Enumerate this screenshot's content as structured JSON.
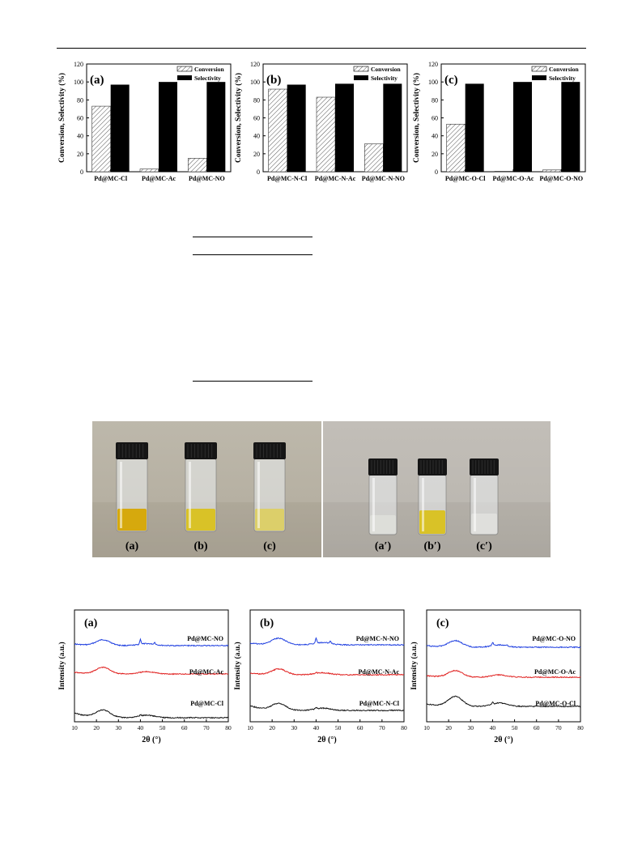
{
  "bar_figures": [
    {
      "panel": "(a)",
      "ylabel": "Conversion, Selectivity (%)",
      "legend": [
        "Conversion",
        "Selectivity"
      ],
      "categories": [
        "Pd@MC-Cl",
        "Pd@MC-Ac",
        "Pd@MC-NO"
      ],
      "conversion": [
        73,
        3,
        15
      ],
      "selectivity": [
        97,
        100,
        100
      ]
    },
    {
      "panel": "(b)",
      "ylabel": "Conversion, Selectivity (%)",
      "legend": [
        "Conversion",
        "Selectivity"
      ],
      "categories": [
        "Pd@MC-N-Cl",
        "Pd@MC-N-Ac",
        "Pd@MC-N-NO"
      ],
      "conversion": [
        92,
        83,
        31
      ],
      "selectivity": [
        97,
        98,
        98
      ]
    },
    {
      "panel": "(c)",
      "ylabel": "Conversion, Selectivity (%)",
      "legend": [
        "Conversion",
        "Selectivity"
      ],
      "categories": [
        "Pd@MC-O-Cl",
        "Pd@MC-O-Ac",
        "Pd@MC-O-NO"
      ],
      "conversion": [
        53,
        0.5,
        2
      ],
      "selectivity": [
        98,
        100,
        100
      ]
    }
  ],
  "bar_axis": {
    "ymin": 0,
    "ymax": 120,
    "yticks": [
      0,
      20,
      40,
      60,
      80,
      100,
      120
    ]
  },
  "photo": {
    "left_labels": [
      "(a)",
      "(b)",
      "(c)"
    ],
    "right_labels": [
      "(a′)",
      "(b′)",
      "(c′)"
    ],
    "colors": {
      "background_left": "#b8b3a6",
      "background_right": "#bdb9b3",
      "cap": "#151515",
      "liquid_a": "#d6a90d",
      "liquid_b": "#d9c227",
      "liquid_c": "#dccf6a"
    }
  },
  "xrd_figures": [
    {
      "panel": "(a)",
      "ylabel": "Intensity (a.u.)",
      "xlabel": "2θ (°)",
      "labels": [
        "Pd@MC-NO",
        "Pd@MC-Ac",
        "Pd@MC-Cl"
      ]
    },
    {
      "panel": "(b)",
      "ylabel": "Intensity (a.u.)",
      "xlabel": "2θ (°)",
      "labels": [
        "Pd@MC-N-NO",
        "Pd@MC-N-Ac",
        "Pd@MC-N-Cl"
      ]
    },
    {
      "panel": "(c)",
      "ylabel": "Intensity (a.u.)",
      "xlabel": "2θ (°)",
      "labels": [
        "Pd@MC-O-NO",
        "Pd@MC-O-Ac",
        "Pd@MC-O-Cl"
      ]
    }
  ],
  "xrd_axis": {
    "xmin": 10,
    "xmax": 80,
    "xticks": [
      10,
      20,
      30,
      40,
      50,
      60,
      70,
      80
    ]
  },
  "colors": {
    "blue": "#1f3fe0",
    "red": "#e0201f",
    "black": "#111111"
  },
  "chart_data": [
    {
      "type": "bar",
      "title": "(a)",
      "ylabel": "Conversion, Selectivity (%)",
      "categories": [
        "Pd@MC-Cl",
        "Pd@MC-Ac",
        "Pd@MC-NO"
      ],
      "series": [
        {
          "name": "Conversion",
          "values": [
            73,
            3,
            15
          ]
        },
        {
          "name": "Selectivity",
          "values": [
            97,
            100,
            100
          ]
        }
      ],
      "ylim": [
        0,
        120
      ]
    },
    {
      "type": "bar",
      "title": "(b)",
      "ylabel": "Conversion, Selectivity (%)",
      "categories": [
        "Pd@MC-N-Cl",
        "Pd@MC-N-Ac",
        "Pd@MC-N-NO"
      ],
      "series": [
        {
          "name": "Conversion",
          "values": [
            92,
            83,
            31
          ]
        },
        {
          "name": "Selectivity",
          "values": [
            97,
            98,
            98
          ]
        }
      ],
      "ylim": [
        0,
        120
      ]
    },
    {
      "type": "bar",
      "title": "(c)",
      "ylabel": "Conversion, Selectivity (%)",
      "categories": [
        "Pd@MC-O-Cl",
        "Pd@MC-O-Ac",
        "Pd@MC-O-NO"
      ],
      "series": [
        {
          "name": "Conversion",
          "values": [
            53,
            0.5,
            2
          ]
        },
        {
          "name": "Selectivity",
          "values": [
            98,
            100,
            100
          ]
        }
      ],
      "ylim": [
        0,
        120
      ]
    }
  ]
}
